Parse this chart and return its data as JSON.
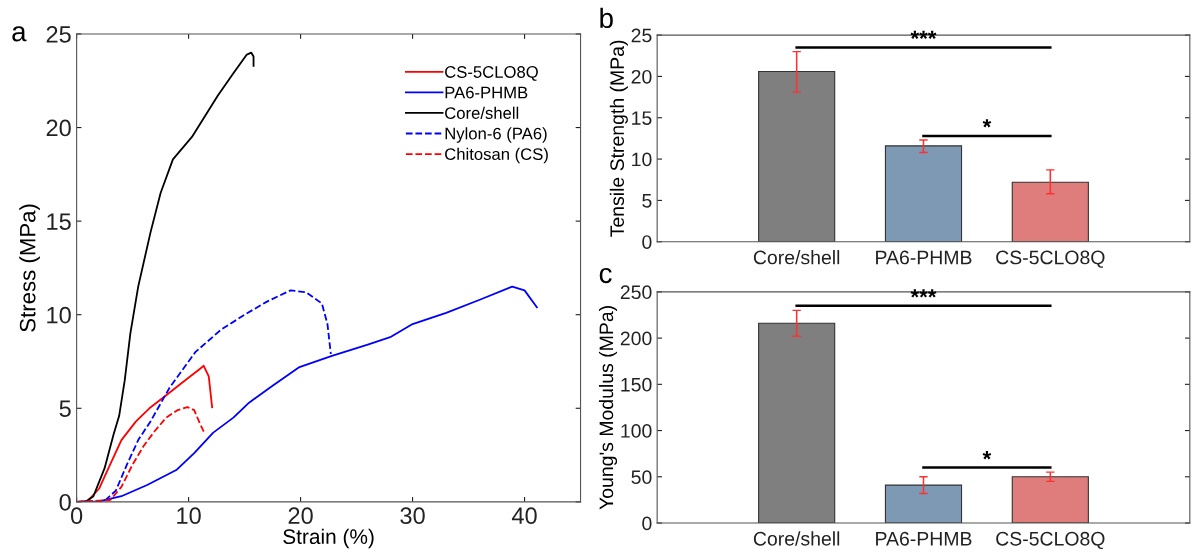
{
  "chart_data": [
    {
      "type": "line",
      "title": "a",
      "xlabel": "Strain (%)",
      "ylabel": "Stress (MPa)",
      "xlim": [
        0,
        45
      ],
      "ylim": [
        0,
        25
      ],
      "xticks": [
        0,
        10,
        20,
        30,
        40
      ],
      "yticks": [
        0,
        5,
        10,
        15,
        20,
        25
      ],
      "legend": "top right",
      "grid": false,
      "series": [
        {
          "name": "CS-5CLO8Q",
          "color": "#ff0000",
          "line_style": "solid",
          "x": [
            0,
            1,
            2,
            3,
            4,
            5.3,
            6.5,
            8,
            9.5,
            11,
            11.35,
            11.8,
            12.1
          ],
          "values": [
            0,
            0.05,
            0.7,
            2,
            3.3,
            4.3,
            5,
            5.7,
            6.4,
            7.1,
            7.27,
            6.7,
            5.06
          ]
        },
        {
          "name": "PA6-PHMB",
          "color": "#0000ff",
          "line_style": "solid",
          "x": [
            0,
            2,
            4,
            6.3,
            8.9,
            10.5,
            12.2,
            14,
            15.4,
            17.5,
            19.9,
            22.8,
            26,
            28,
            30,
            33,
            36,
            38.9,
            40,
            41.1
          ],
          "values": [
            0,
            0.02,
            0.3,
            0.9,
            1.7,
            2.6,
            3.7,
            4.5,
            5.3,
            6.2,
            7.2,
            7.8,
            8.4,
            8.8,
            9.5,
            10.1,
            10.8,
            11.5,
            11.3,
            10.4
          ]
        },
        {
          "name": "Core/shell",
          "color": "#000000",
          "line_style": "solid",
          "x": [
            0,
            0.8,
            1.5,
            2.5,
            3.3,
            3.8,
            4.3,
            4.8,
            5.5,
            6.6,
            7.5,
            8.6,
            10.3,
            12.6,
            14,
            15.2,
            15.6,
            15.8,
            15.8
          ],
          "values": [
            0,
            0,
            0.3,
            1.8,
            3.6,
            4.6,
            6.5,
            9,
            11.5,
            14.4,
            16.5,
            18.3,
            19.5,
            21.7,
            22.9,
            23.9,
            24.0,
            23.8,
            23.3
          ]
        },
        {
          "name": "Nylon-6 (PA6)",
          "color": "#0000ff",
          "line_style": "dashed",
          "x": [
            0,
            2.5,
            3.5,
            4.5,
            5.5,
            6.6,
            8.3,
            10.6,
            12.9,
            15,
            17,
            19.1,
            20.5,
            21.9,
            22.4,
            22.7
          ],
          "values": [
            0,
            0.05,
            0.6,
            2,
            3.3,
            4.3,
            6.1,
            8.0,
            9.2,
            10,
            10.7,
            11.3,
            11.2,
            10.6,
            9.5,
            7.9
          ]
        },
        {
          "name": "Chitosan (CS)",
          "color": "#ff0000",
          "line_style": "dashed",
          "x": [
            0,
            3,
            4,
            5,
            6,
            7,
            8,
            9,
            9.9,
            10.5,
            11,
            11.4
          ],
          "values": [
            0,
            0.1,
            0.8,
            2,
            3,
            3.8,
            4.5,
            4.9,
            5.06,
            4.9,
            4.2,
            3.7
          ]
        }
      ]
    },
    {
      "type": "bar",
      "title": "b",
      "ylabel": "Tensile Strength (MPa)",
      "categories": [
        "Core/shell",
        "PA6-PHMB",
        "CS-5CLO8Q"
      ],
      "values": [
        20.6,
        11.6,
        7.2
      ],
      "colors": [
        "#7f7f7f",
        "#7e99b3",
        "#df7c7c"
      ],
      "errors": [
        [
          18.1,
          23.0
        ],
        [
          10.8,
          12.3
        ],
        [
          5.8,
          8.7
        ]
      ],
      "ylim": [
        0,
        25
      ],
      "yticks": [
        0,
        5,
        10,
        15,
        20,
        25
      ],
      "annotations": [
        "***",
        "*"
      ],
      "grid": false
    },
    {
      "type": "bar",
      "title": "c",
      "ylabel": "Young's Modulus (MPa)",
      "categories": [
        "Core/shell",
        "PA6-PHMB",
        "CS-5CLO8Q"
      ],
      "values": [
        216,
        41,
        50
      ],
      "colors": [
        "#7f7f7f",
        "#7e99b3",
        "#df7c7c"
      ],
      "errors": [
        [
          202,
          230
        ],
        [
          32,
          50
        ],
        [
          45,
          55
        ]
      ],
      "ylim": [
        0,
        250
      ],
      "yticks": [
        0,
        50,
        100,
        150,
        200,
        250
      ],
      "annotations": [
        "***",
        "*"
      ],
      "grid": false
    }
  ]
}
